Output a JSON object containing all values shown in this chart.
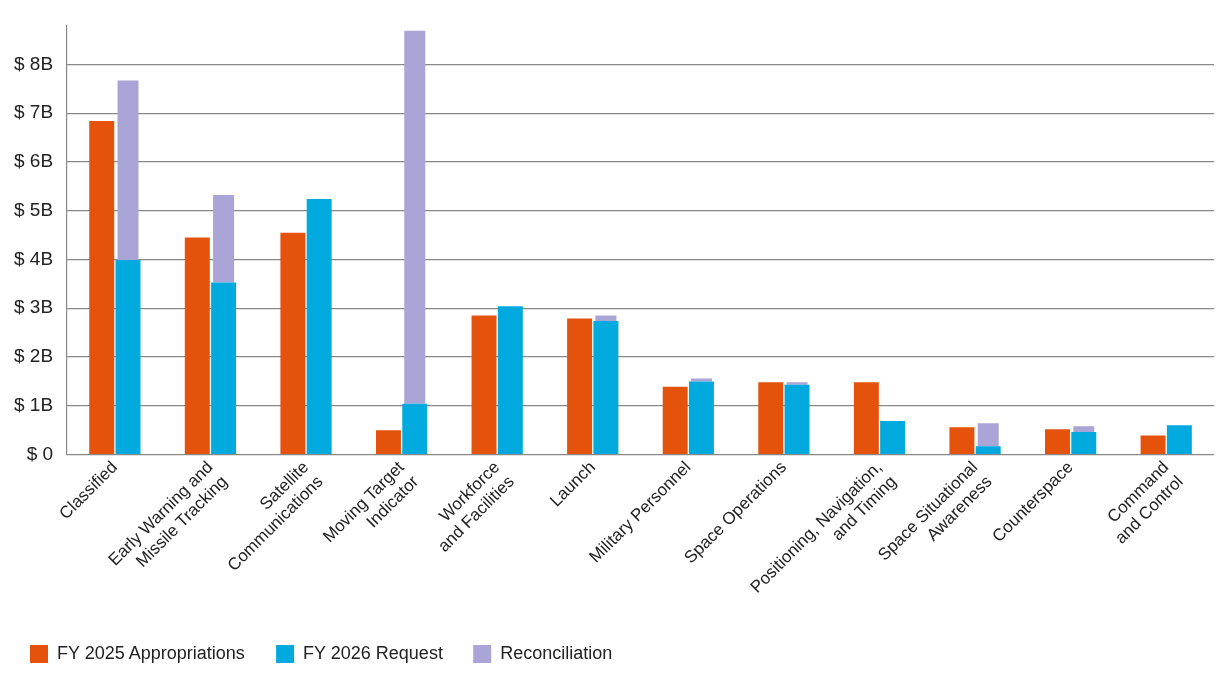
{
  "chart_data": {
    "type": "bar",
    "categories": [
      "Classified",
      "Early Warning and\nMissile Tracking",
      "Satellite\nCommunications",
      "Moving Target\nIndicator",
      "Workforce\nand Facilities",
      "Launch",
      "Military Personnel",
      "Space Operations",
      "Positioning, Navigation,\nand Timing",
      "Space Situational\nAwareness",
      "Counterspace",
      "Command\nand Control"
    ],
    "series": [
      {
        "name": "FY 2025 Appropriations",
        "color": "#e4520b",
        "values": [
          6.84,
          4.45,
          4.55,
          0.5,
          2.85,
          2.79,
          1.39,
          1.48,
          1.48,
          0.56,
          0.52,
          0.39
        ]
      },
      {
        "name": "FY 2026 Request",
        "color": "#00a9de",
        "values": [
          3.99,
          3.53,
          5.24,
          1.04,
          3.04,
          2.74,
          1.5,
          1.43,
          0.69,
          0.17,
          0.46,
          0.6
        ]
      },
      {
        "name": "Reconciliation",
        "color": "#a9a5d6",
        "base": [
          3.99,
          3.53,
          null,
          1.04,
          null,
          2.74,
          1.5,
          1.43,
          null,
          0.17,
          0.46,
          null
        ],
        "values": [
          3.68,
          1.79,
          null,
          7.65,
          null,
          0.11,
          0.06,
          0.05,
          null,
          0.47,
          0.12,
          null
        ]
      }
    ],
    "ylim": [
      0,
      8.8
    ],
    "yticks": [
      {
        "value": 0,
        "label": "$ 0"
      },
      {
        "value": 1,
        "label": "$ 1B"
      },
      {
        "value": 2,
        "label": "$ 2B"
      },
      {
        "value": 3,
        "label": "$ 3B"
      },
      {
        "value": 4,
        "label": "$ 4B"
      },
      {
        "value": 5,
        "label": "$ 5B"
      },
      {
        "value": 6,
        "label": "$ 6B"
      },
      {
        "value": 7,
        "label": "$ 7B"
      },
      {
        "value": 8,
        "label": "$ 8B"
      }
    ],
    "grid": "y",
    "legend": "bottom left"
  }
}
